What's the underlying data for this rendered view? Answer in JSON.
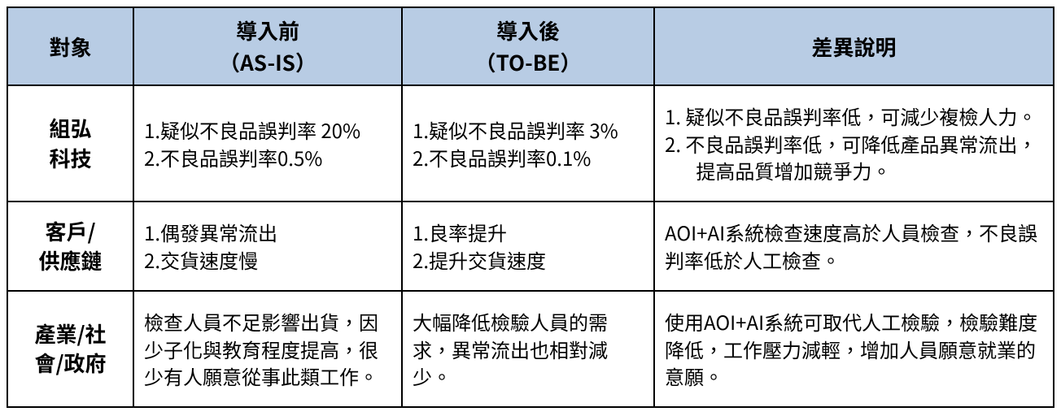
{
  "table": {
    "header_bg": "#b8cce4",
    "border_color": "#000000",
    "columns": [
      {
        "key": "target",
        "label": "對象"
      },
      {
        "key": "asis",
        "label": "導入前<br>（AS-IS）"
      },
      {
        "key": "tobe",
        "label": "導入後<br>（TO-BE）"
      },
      {
        "key": "diff",
        "label": "差異說明"
      }
    ],
    "rows": [
      {
        "target": "組弘<br>科技",
        "asis": "<ul class=\"num-list\"><li>1.疑似不良品誤判率 20%</li><li>2.不良品誤判率0.5%</li></ul>",
        "tobe": "<ul class=\"num-list\"><li>1.疑似不良品誤判率 3%</li><li>2.不良品誤判率0.1%</li></ul>",
        "diff": "<ul class=\"num-list wide\"><li>1. 疑似不良品誤判率低，可減少複檢人力。</li><li>2. 不良品誤判率低，可降低產品異常流出，提高品質增加競爭力。</li></ul>"
      },
      {
        "target": "客戶/<br>供應鏈",
        "asis": "<ul class=\"num-list\"><li>1.偶發異常流出</li><li>2.交貨速度慢</li></ul>",
        "tobe": "<ul class=\"num-list\"><li>1.良率提升</li><li>2.提升交貨速度</li></ul>",
        "diff": "AOI+AI系統檢查速度高於人員檢查，不良誤判率低於人工檢查。"
      },
      {
        "target": "產業/社<br>會/政府",
        "asis": "檢查人員不足影響出貨，因少子化與教育程度提高，很少有人願意從事此類工作。",
        "tobe": "大幅降低檢驗人員的需求，異常流出也相對減少。",
        "diff": "使用AOI+AI系統可取代人工檢驗，檢驗難度降低，工作壓力減輕，增加人員願意就業的意願。"
      }
    ]
  }
}
